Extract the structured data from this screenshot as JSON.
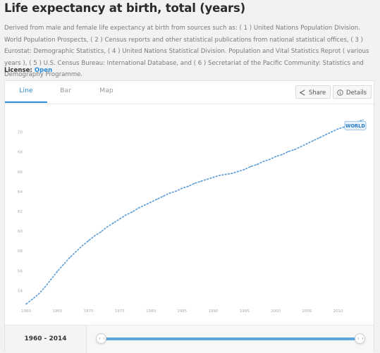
{
  "page": {
    "title": "Life expectancy at birth, total (years)",
    "description": "Derived from male and female life expectancy at birth from sources such as: ( 1 ) United Nations Population Division. World Population Prospects, ( 2 ) Census reports and other statistical publications from national statistical offices, ( 3 ) Eurostat: Demographic Statistics, ( 4 ) United Nations Statistical Division. Population and Vital Statistics Reprot ( various years ), ( 5 ) U.S. Census Bureau: International Database, and ( 6 ) Secretariat of the Pacific Community: Statistics and Demography Programme.",
    "license_label": "License:",
    "license_value": "Open"
  },
  "tabs": [
    {
      "label": "Line",
      "active": true
    },
    {
      "label": "Bar",
      "active": false
    },
    {
      "label": "Map",
      "active": false
    }
  ],
  "actions": {
    "share_label": "Share",
    "details_label": "Details"
  },
  "range": {
    "label": "1960 - 2014"
  },
  "colors": {
    "accent": "#2a8bd6",
    "line": "#5b9bd5"
  },
  "chart_data": {
    "type": "line",
    "series": [
      {
        "name": "WORLD",
        "x": [
          1960,
          1961,
          1962,
          1963,
          1964,
          1965,
          1966,
          1967,
          1968,
          1969,
          1970,
          1971,
          1972,
          1973,
          1974,
          1975,
          1976,
          1977,
          1978,
          1979,
          1980,
          1981,
          1982,
          1983,
          1984,
          1985,
          1986,
          1987,
          1988,
          1989,
          1990,
          1991,
          1992,
          1993,
          1994,
          1995,
          1996,
          1997,
          1998,
          1999,
          2000,
          2001,
          2002,
          2003,
          2004,
          2005,
          2006,
          2007,
          2008,
          2009,
          2010,
          2011,
          2012,
          2013,
          2014
        ],
        "values": [
          52.6,
          53.1,
          53.6,
          54.3,
          55.1,
          55.9,
          56.6,
          57.3,
          57.9,
          58.5,
          59.0,
          59.5,
          59.9,
          60.4,
          60.8,
          61.2,
          61.6,
          61.9,
          62.3,
          62.6,
          62.9,
          63.2,
          63.5,
          63.8,
          64.0,
          64.3,
          64.5,
          64.8,
          65.0,
          65.2,
          65.4,
          65.6,
          65.7,
          65.8,
          66.0,
          66.2,
          66.5,
          66.7,
          67.0,
          67.2,
          67.5,
          67.7,
          68.0,
          68.2,
          68.5,
          68.8,
          69.1,
          69.4,
          69.7,
          70.0,
          70.3,
          70.5,
          70.8,
          71.0,
          71.2
        ]
      }
    ],
    "xlim": [
      1960,
      2014
    ],
    "ylim": [
      52.5,
      71.5
    ],
    "xticks": [
      1960,
      1965,
      1970,
      1975,
      1980,
      1985,
      1990,
      1995,
      2000,
      2005,
      2010
    ],
    "yticks": [
      54,
      56,
      58,
      60,
      62,
      64,
      66,
      68,
      70
    ],
    "grid": false,
    "end_label": "WORLD"
  }
}
